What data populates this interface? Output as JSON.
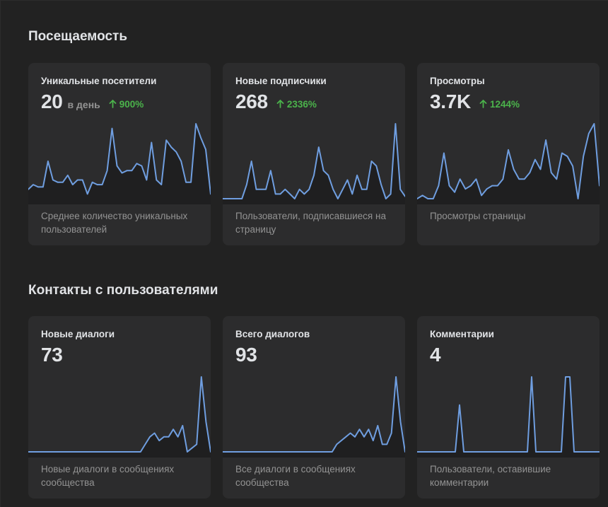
{
  "sections": [
    {
      "title": "Посещаемость",
      "cards": [
        {
          "label": "Уникальные посетители",
          "value": "20",
          "unit": "в день",
          "delta": "900%",
          "delta_color": "#4bb34b",
          "description": "Среднее количество уникальных пользователей",
          "series": [
            2,
            3,
            2.5,
            2.5,
            8,
            4,
            3.5,
            3.5,
            5,
            3,
            4,
            4,
            1,
            3.5,
            3,
            3,
            6,
            15,
            7,
            5.5,
            6,
            6,
            7.5,
            7,
            4,
            12,
            4,
            3,
            12.5,
            11,
            10,
            8,
            3.5,
            3.5,
            16,
            13,
            10.5,
            1
          ]
        },
        {
          "label": "Новые подписчики",
          "value": "268",
          "unit": "",
          "delta": "2336%",
          "delta_color": "#4bb34b",
          "description": "Пользователи, подписавшиеся на страницу",
          "series": [
            0,
            0,
            0,
            0,
            0,
            3,
            8,
            2,
            2,
            2,
            6,
            1,
            1,
            2,
            1,
            0,
            2,
            1,
            2,
            5,
            11,
            6,
            5,
            2,
            0,
            2,
            4,
            1,
            5,
            2,
            2,
            8,
            7,
            3,
            0,
            1,
            16,
            2,
            0.5
          ]
        },
        {
          "label": "Просмотры",
          "value": "3.7K",
          "unit": "",
          "delta": "1244%",
          "delta_color": "#4bb34b",
          "description": "Просмотры страницы",
          "series": [
            0,
            0.5,
            0,
            0,
            2,
            7,
            2,
            1,
            3,
            1.5,
            2,
            3,
            0.5,
            1.5,
            2,
            2,
            3,
            7.5,
            4.5,
            3,
            3,
            4,
            6,
            4.5,
            9,
            4,
            3,
            7,
            6.5,
            5,
            0,
            6.5,
            10,
            11.5,
            2
          ]
        }
      ]
    },
    {
      "title": "Контакты с пользователями",
      "cards": [
        {
          "label": "Новые диалоги",
          "value": "73",
          "unit": "",
          "delta": "",
          "delta_color": "#4bb34b",
          "description": "Новые диалоги в сообщениях сообщества",
          "series": [
            0,
            0,
            0,
            0,
            0,
            0,
            0,
            0,
            0,
            0,
            0,
            0,
            0,
            0,
            0,
            0,
            0,
            0,
            0,
            0,
            0,
            0,
            0,
            0,
            0,
            1,
            2,
            2.5,
            1.5,
            2,
            2,
            3,
            2,
            3.5,
            0,
            0.5,
            1,
            10,
            4,
            0
          ]
        },
        {
          "label": "Всего диалогов",
          "value": "93",
          "unit": "",
          "delta": "",
          "delta_color": "#4bb34b",
          "description": "Все диалоги в сообщениях сообщества",
          "series": [
            0,
            0,
            0,
            0,
            0,
            0,
            0,
            0,
            0,
            0,
            0,
            0,
            0,
            0,
            0,
            0,
            0,
            0,
            0,
            0,
            0,
            0,
            0,
            0,
            0,
            1,
            1.5,
            2,
            2.5,
            2,
            3,
            2,
            3,
            1.5,
            3.5,
            1,
            1,
            2.5,
            10,
            4,
            0
          ]
        },
        {
          "label": "Комментарии",
          "value": "4",
          "unit": "",
          "delta": "",
          "delta_color": "#4bb34b",
          "description": "Пользователи, оставившие комментарии",
          "series": [
            0,
            0,
            0,
            0,
            0,
            0,
            0,
            0,
            0,
            0,
            1,
            0,
            0,
            0,
            0,
            0,
            0,
            0,
            0,
            0,
            0,
            0,
            0,
            0,
            0,
            0,
            0,
            1.6,
            0,
            0,
            0,
            0,
            0,
            0,
            0,
            1.6,
            1.6,
            0,
            0,
            0,
            0,
            0,
            0,
            0
          ]
        }
      ]
    }
  ]
}
